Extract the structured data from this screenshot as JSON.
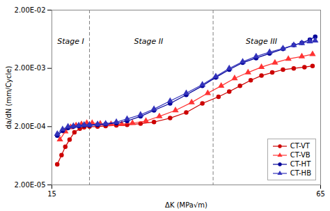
{
  "chart_data": {
    "type": "line",
    "xlabel": "ΔK (MPa√m)",
    "ylabel": "da/dN (mm/Cycle)",
    "log": "y",
    "xlim": [
      15,
      65
    ],
    "ylim": [
      2e-05,
      0.02
    ],
    "xticks": [
      15,
      65
    ],
    "yticks": [
      {
        "value": 2e-05,
        "label": "2.00E-05"
      },
      {
        "value": 0.0002,
        "label": "2.00E-04"
      },
      {
        "value": 0.002,
        "label": "2.00E-03"
      },
      {
        "value": 0.02,
        "label": "2.00E-02"
      }
    ],
    "grid": false,
    "legend": "lower right",
    "vlines": [
      22,
      45
    ],
    "annotations": [
      {
        "text": "Stage I",
        "x": 18.5,
        "y": 0.005768063
      },
      {
        "text": "Stage II",
        "x": 33,
        "y": 0.005768063
      },
      {
        "text": "Stage III",
        "x": 54,
        "y": 0.005768063
      }
    ],
    "series": [
      {
        "name": "CT-VT",
        "color": "#cc0000",
        "marker": "circle",
        "line_style": "solid",
        "x": [
          16.0,
          16.8,
          17.5,
          18.3,
          19.2,
          20.2,
          21.0,
          22.0,
          23.5,
          25.0,
          27.0,
          29.0,
          31.5,
          34.0,
          37.0,
          40.0,
          43.0,
          46.0,
          48.0,
          50.0,
          52.0,
          54.0,
          56.0,
          58.0,
          60.0,
          62.0,
          63.5
        ],
        "values": [
          4.5e-05,
          6.5e-05,
          9e-05,
          0.00012,
          0.00016,
          0.000185,
          0.000195,
          0.0002,
          0.0002,
          0.000205,
          0.00021,
          0.000215,
          0.000225,
          0.00024,
          0.00028,
          0.00035,
          0.0005,
          0.00065,
          0.0008,
          0.001,
          0.00125,
          0.0015,
          0.0017,
          0.0019,
          0.002,
          0.0021,
          0.0022
        ]
      },
      {
        "name": "CT-VB",
        "color": "#ff3333",
        "marker": "triangle",
        "line_style": "solid",
        "x": [
          16.5,
          17.5,
          18.5,
          19.5,
          20.5,
          21.5,
          22.5,
          24.0,
          26.0,
          28.0,
          30.0,
          32.5,
          35.0,
          38.0,
          41.0,
          44.0,
          46.5,
          49.0,
          51.5,
          54.0,
          56.5,
          59.0,
          61.5,
          63.5
        ],
        "values": [
          0.00012,
          0.000165,
          0.000195,
          0.00021,
          0.00022,
          0.00023,
          0.00023,
          0.000225,
          0.00022,
          0.00022,
          0.00023,
          0.00025,
          0.0003,
          0.00038,
          0.00052,
          0.00075,
          0.001,
          0.00135,
          0.0017,
          0.0021,
          0.0025,
          0.0029,
          0.0032,
          0.0035
        ]
      },
      {
        "name": "CT-HT",
        "color": "#000099",
        "marker": "circle",
        "line_style": "solid",
        "x": [
          16.0,
          17.0,
          18.0,
          19.0,
          20.0,
          21.0,
          22.0,
          23.5,
          25.0,
          27.0,
          29.0,
          31.5,
          34.0,
          37.0,
          40.0,
          43.0,
          45.5,
          48.0,
          50.5,
          53.0,
          55.5,
          58.0,
          60.0,
          61.5,
          63.0,
          64.0
        ],
        "values": [
          0.00014,
          0.00017,
          0.00019,
          0.0002,
          0.000205,
          0.00021,
          0.00021,
          0.000215,
          0.00022,
          0.00023,
          0.00025,
          0.0003,
          0.00038,
          0.0005,
          0.0007,
          0.001,
          0.0014,
          0.0019,
          0.0025,
          0.003,
          0.0036,
          0.0043,
          0.005,
          0.0055,
          0.0062,
          0.007
        ]
      },
      {
        "name": "CT-HB",
        "color": "#3333bb",
        "marker": "triangle",
        "line_style": "solid",
        "x": [
          16.0,
          17.0,
          18.0,
          19.0,
          20.0,
          21.0,
          22.0,
          23.5,
          25.0,
          27.0,
          29.0,
          31.5,
          34.0,
          37.0,
          40.0,
          43.0,
          45.5,
          48.0,
          50.5,
          53.0,
          55.5,
          58.0,
          60.0,
          61.5,
          63.0,
          64.0
        ],
        "values": [
          0.00015,
          0.00018,
          0.0002,
          0.000205,
          0.00021,
          0.000215,
          0.000215,
          0.00022,
          0.000225,
          0.00024,
          0.00027,
          0.00032,
          0.0004,
          0.00055,
          0.00075,
          0.00105,
          0.00145,
          0.002,
          0.0026,
          0.0032,
          0.0038,
          0.0044,
          0.005,
          0.0054,
          0.0058,
          0.006
        ]
      }
    ]
  }
}
